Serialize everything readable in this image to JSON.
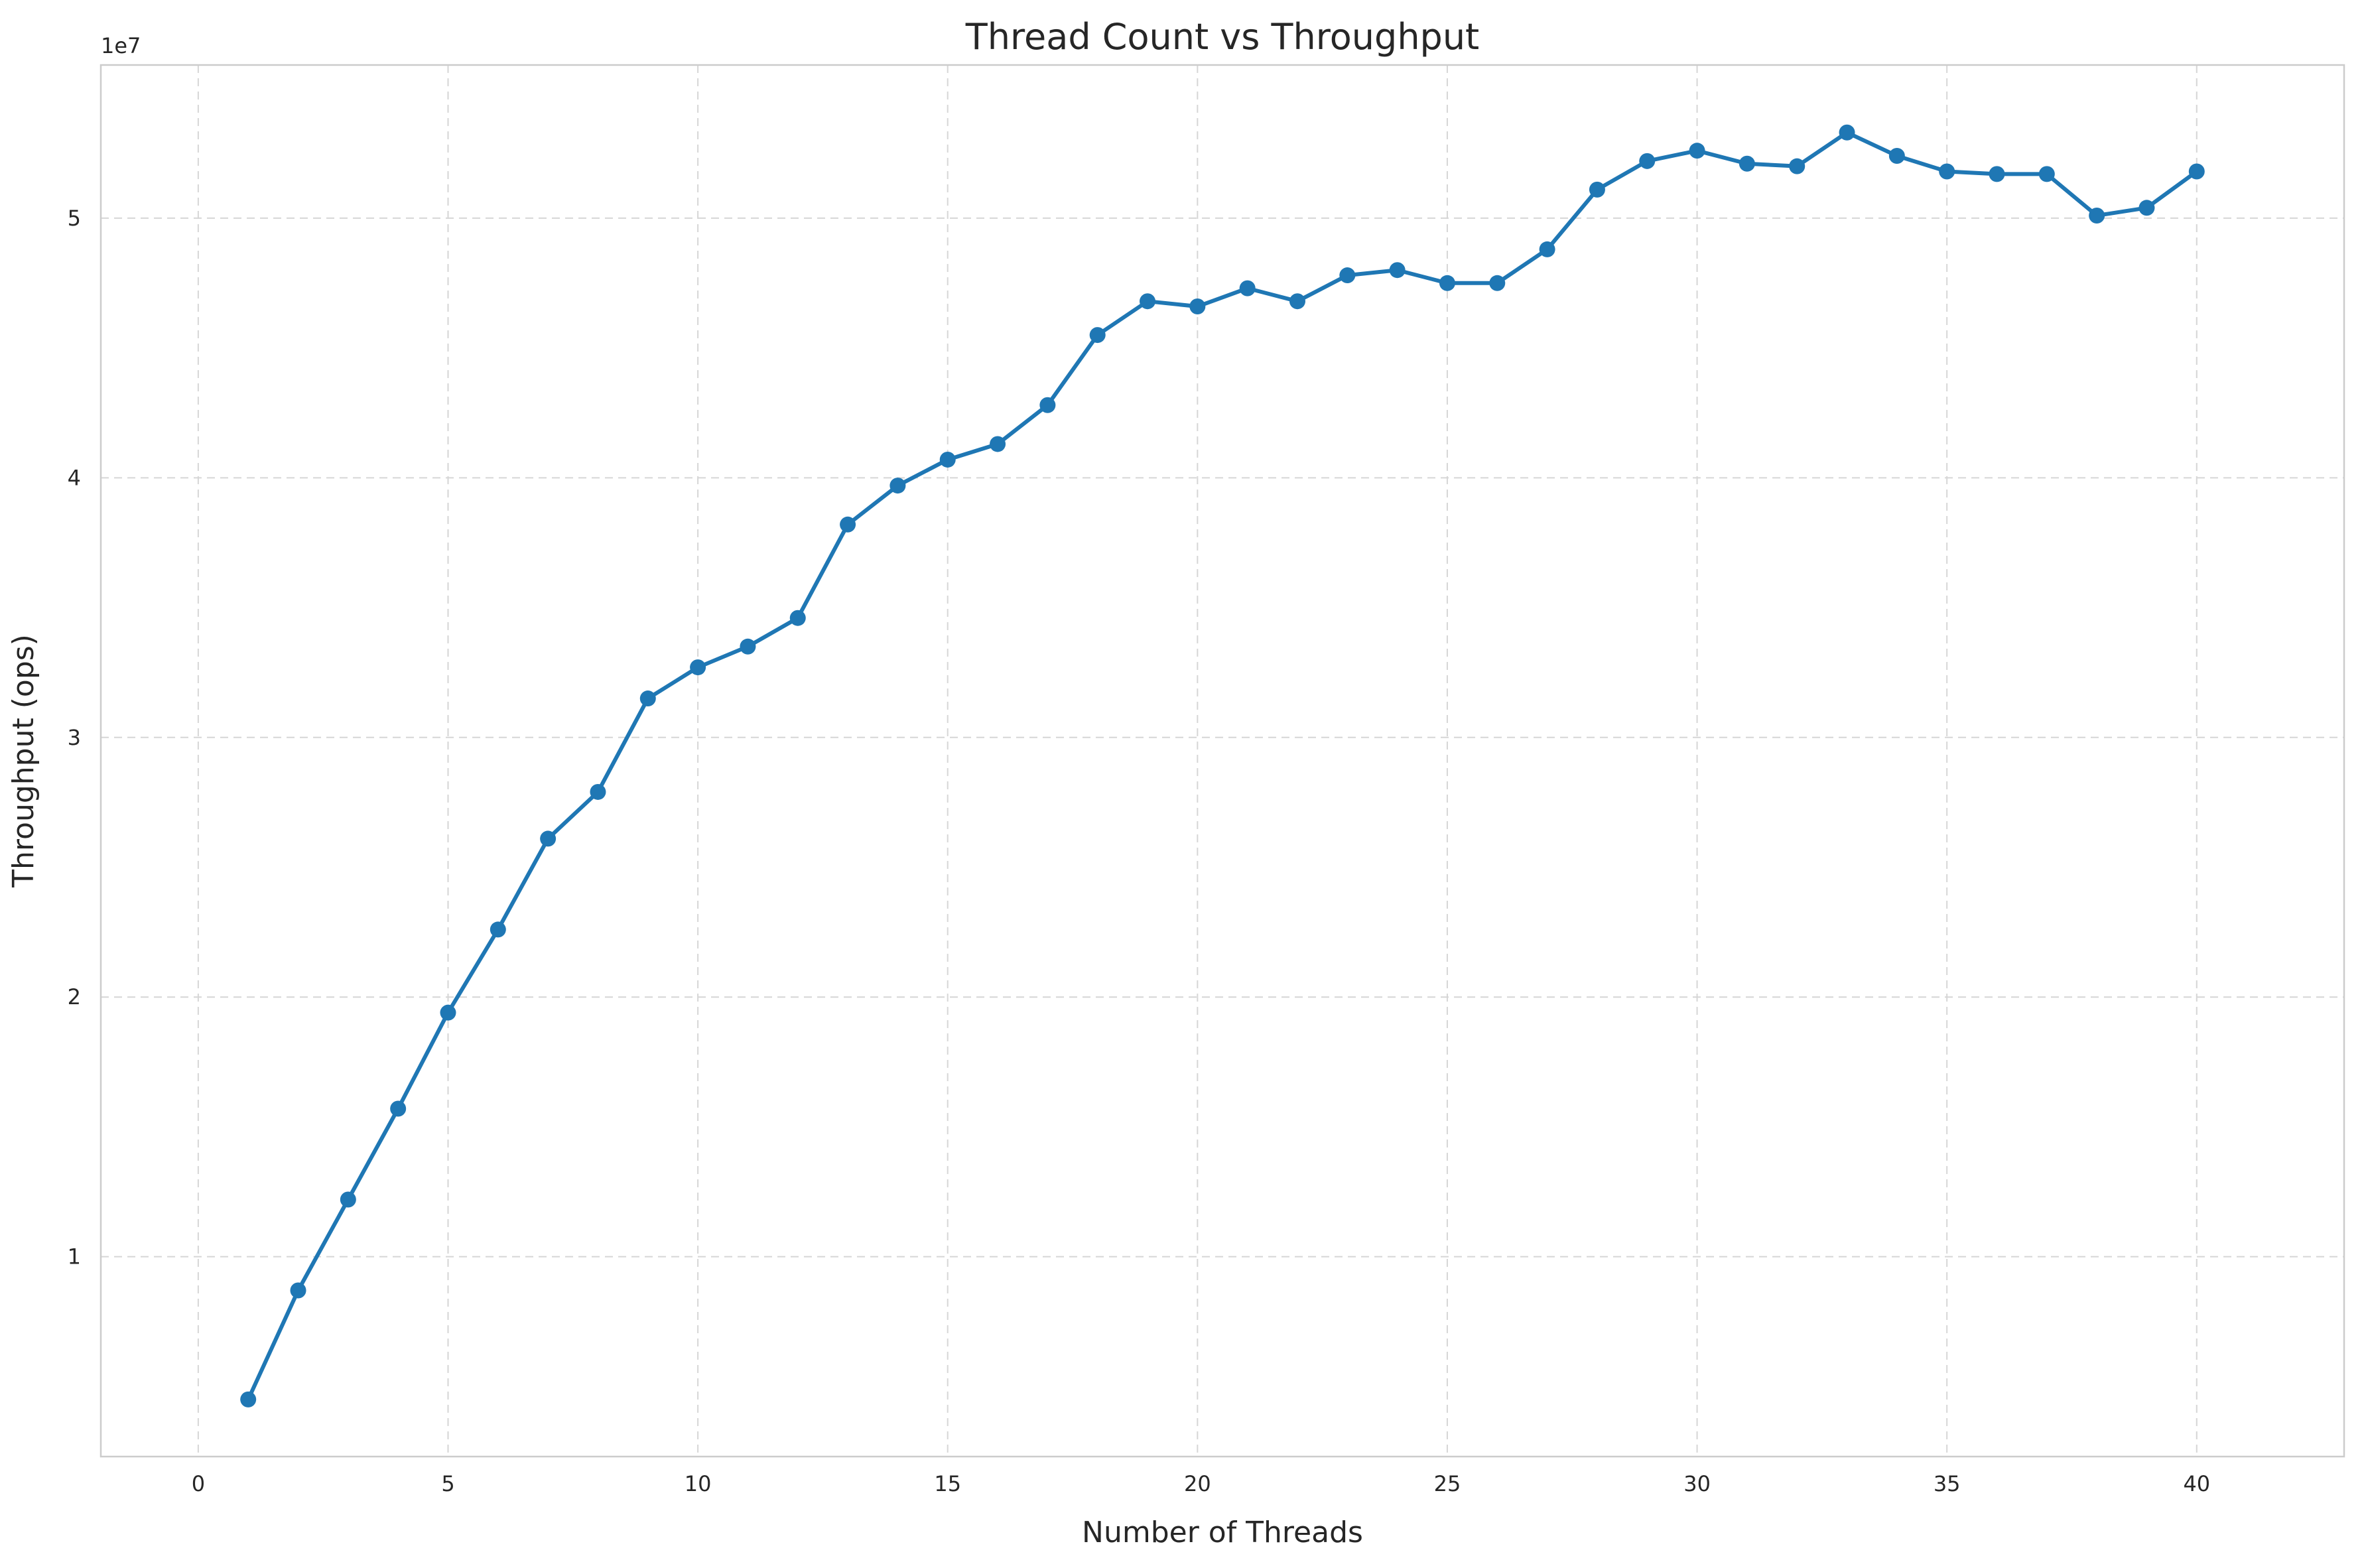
{
  "chart_data": {
    "type": "line",
    "title": "Thread Count vs Throughput",
    "xlabel": "Number of Threads",
    "ylabel": "Throughput (ops)",
    "y_offset_label": "1e7",
    "xlim": [
      -1.95,
      42.95
    ],
    "ylim": [
      2300000,
      55900000
    ],
    "x_ticks": [
      0,
      5,
      10,
      15,
      20,
      25,
      30,
      35,
      40
    ],
    "x_tick_labels": [
      "0",
      "5",
      "10",
      "15",
      "20",
      "25",
      "30",
      "35",
      "40"
    ],
    "y_ticks": [
      10000000,
      20000000,
      30000000,
      40000000,
      50000000
    ],
    "y_tick_labels": [
      "1",
      "2",
      "3",
      "4",
      "5"
    ],
    "grid": true,
    "colors": {
      "series": "#1f77b4",
      "grid": "#d6d6d6",
      "frame": "#cccccc",
      "text": "#262626"
    },
    "series": [
      {
        "x": [
          1,
          2,
          3,
          4,
          5,
          6,
          7,
          8,
          9,
          10,
          11,
          12,
          13,
          14,
          15,
          16,
          17,
          18,
          19,
          20,
          21,
          22,
          23,
          24,
          25,
          26,
          27,
          28,
          29,
          30,
          31,
          32,
          33,
          34,
          35,
          36,
          37,
          38,
          39,
          40
        ],
        "values": [
          4500000,
          8700000,
          12200000,
          15700000,
          19400000,
          22600000,
          26100000,
          27900000,
          31500000,
          32700000,
          33500000,
          34600000,
          38200000,
          39700000,
          40700000,
          41300000,
          42800000,
          45500000,
          46800000,
          46600000,
          47300000,
          46800000,
          47800000,
          48000000,
          47500000,
          47500000,
          48800000,
          51100000,
          52200000,
          52600000,
          52100000,
          52000000,
          53300000,
          52400000,
          51800000,
          51700000,
          51700000,
          50100000,
          50400000,
          51800000
        ]
      }
    ]
  }
}
